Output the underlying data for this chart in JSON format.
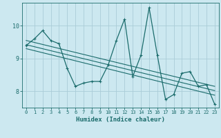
{
  "xlabel": "Humidex (Indice chaleur)",
  "ylabel": "",
  "bg_color": "#cce8f0",
  "grid_color": "#aaccd8",
  "line_color": "#1a6b6b",
  "xlim": [
    -0.5,
    23.5
  ],
  "ylim": [
    7.5,
    10.7
  ],
  "xticks": [
    0,
    1,
    2,
    3,
    4,
    5,
    6,
    7,
    8,
    9,
    10,
    11,
    12,
    13,
    14,
    15,
    16,
    17,
    18,
    19,
    20,
    21,
    22,
    23
  ],
  "yticks": [
    8,
    9,
    10
  ],
  "main_series": [
    [
      0,
      9.4
    ],
    [
      1,
      9.6
    ],
    [
      2,
      9.85
    ],
    [
      3,
      9.55
    ],
    [
      4,
      9.45
    ],
    [
      5,
      8.7
    ],
    [
      6,
      8.15
    ],
    [
      7,
      8.25
    ],
    [
      8,
      8.3
    ],
    [
      9,
      8.3
    ],
    [
      10,
      8.8
    ],
    [
      11,
      9.55
    ],
    [
      12,
      10.2
    ],
    [
      13,
      8.45
    ],
    [
      14,
      9.1
    ],
    [
      15,
      10.55
    ],
    [
      16,
      9.1
    ],
    [
      17,
      7.75
    ],
    [
      18,
      7.9
    ],
    [
      19,
      8.55
    ],
    [
      20,
      8.6
    ],
    [
      21,
      8.15
    ],
    [
      22,
      8.2
    ],
    [
      23,
      7.6
    ]
  ],
  "trend_line1": [
    [
      0,
      9.55
    ],
    [
      23,
      8.15
    ]
  ],
  "trend_line2": [
    [
      0,
      9.42
    ],
    [
      23,
      8.02
    ]
  ],
  "trend_line3": [
    [
      0,
      9.3
    ],
    [
      23,
      7.88
    ]
  ]
}
